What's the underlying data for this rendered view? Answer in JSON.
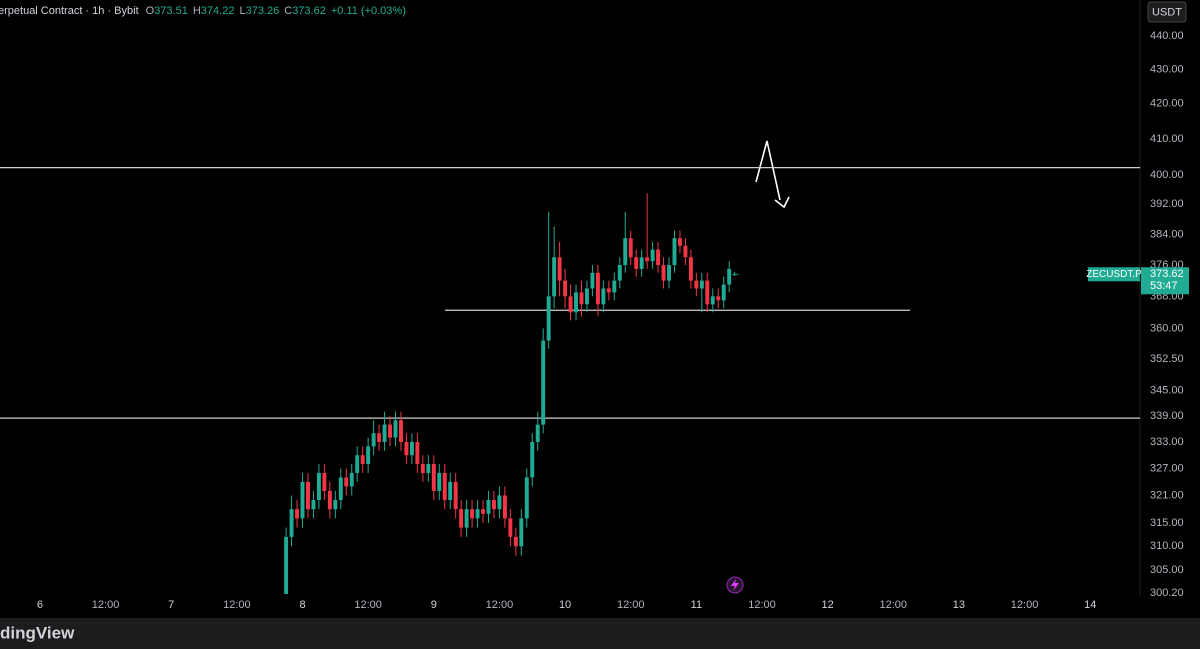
{
  "chart_data": {
    "type": "candlestick",
    "title": "erpetual Contract · 1h · Bybit",
    "ohlc_labels": [
      "O",
      "H",
      "L",
      "C"
    ],
    "change": "+0.11 (+0.03%)",
    "currency_button": "USDT",
    "symbol_label": "ZECUSDT.P",
    "countdown": "53:47",
    "brand": "dingView",
    "log_scale": true,
    "grid": false,
    "up_color": "#22ab94",
    "down_color": "#f23645",
    "xlim": [
      -7.3,
      201.1
    ],
    "ylim": [
      299.6,
      451
    ],
    "xticks": [
      {
        "value": 0,
        "label": "6"
      },
      {
        "value": 12,
        "label": "12:00"
      },
      {
        "value": 24,
        "label": "7"
      },
      {
        "value": 36,
        "label": "12:00"
      },
      {
        "value": 48,
        "label": "8"
      },
      {
        "value": 60,
        "label": "12:00"
      },
      {
        "value": 72,
        "label": "9"
      },
      {
        "value": 84,
        "label": "12:00"
      },
      {
        "value": 96,
        "label": "10"
      },
      {
        "value": 108,
        "label": "12:00"
      },
      {
        "value": 120,
        "label": "11"
      },
      {
        "value": 132,
        "label": "12:00"
      },
      {
        "value": 144,
        "label": "12"
      },
      {
        "value": 156,
        "label": "12:00"
      },
      {
        "value": 168,
        "label": "13"
      },
      {
        "value": 180,
        "label": "12:00"
      },
      {
        "value": 192,
        "label": "14"
      }
    ],
    "yticks": [
      {
        "value": 440,
        "label": "440.00"
      },
      {
        "value": 430,
        "label": "430.00"
      },
      {
        "value": 420,
        "label": "420.00"
      },
      {
        "value": 410,
        "label": "410.00"
      },
      {
        "value": 400,
        "label": "400.00"
      },
      {
        "value": 392,
        "label": "392.00"
      },
      {
        "value": 384,
        "label": "384.00"
      },
      {
        "value": 376,
        "label": "376.00"
      },
      {
        "value": 368,
        "label": "368.00"
      },
      {
        "value": 360,
        "label": "360.00"
      },
      {
        "value": 352.5,
        "label": "352.50"
      },
      {
        "value": 345,
        "label": "345.00"
      },
      {
        "value": 339,
        "label": "339.00"
      },
      {
        "value": 333,
        "label": "333.00"
      },
      {
        "value": 327,
        "label": "327.00"
      },
      {
        "value": 321,
        "label": "321.00"
      },
      {
        "value": 315,
        "label": "315.00"
      },
      {
        "value": 310,
        "label": "310.00"
      },
      {
        "value": 305,
        "label": "305.00"
      },
      {
        "value": 300.2,
        "label": "300.20"
      }
    ],
    "levels": [
      402,
      364.5,
      338.5
    ],
    "x": [
      45,
      46,
      47,
      48,
      49,
      50,
      51,
      52,
      53,
      54,
      55,
      56,
      57,
      58,
      59,
      60,
      61,
      62,
      63,
      64,
      65,
      66,
      67,
      68,
      69,
      70,
      71,
      72,
      73,
      74,
      75,
      76,
      77,
      78,
      79,
      80,
      81,
      82,
      83,
      84,
      85,
      86,
      87,
      88,
      89,
      90,
      91,
      92,
      93,
      94,
      95,
      96,
      97,
      98,
      99,
      100,
      101,
      102,
      103,
      104,
      105,
      106,
      107,
      108,
      109,
      110,
      111,
      112,
      113,
      114,
      115,
      116,
      117,
      118,
      119,
      120,
      121,
      122,
      123,
      124,
      125,
      126,
      127
    ],
    "open": [
      300,
      312,
      318,
      316,
      324,
      318,
      320,
      326,
      322,
      318,
      320,
      325,
      323,
      326,
      330,
      328,
      332,
      335,
      333,
      337,
      334,
      338,
      333,
      330,
      333,
      328,
      326,
      328,
      322,
      326,
      320,
      324,
      318,
      314,
      318,
      316,
      318,
      317,
      320,
      318,
      321,
      316,
      312,
      310,
      316,
      325,
      333,
      337,
      357,
      368,
      378,
      372,
      368,
      364,
      369,
      366,
      370,
      374,
      366,
      370,
      369,
      372,
      376,
      383,
      378,
      375,
      378,
      377,
      380,
      376,
      372,
      376,
      383,
      381,
      378,
      372,
      370,
      372,
      366,
      368,
      367,
      371,
      373.51
    ],
    "high": [
      314,
      321,
      320,
      326,
      326,
      322,
      328,
      328,
      324,
      322,
      327,
      327,
      328,
      332,
      332,
      334,
      338,
      337,
      340,
      339,
      340,
      340,
      335,
      335,
      335,
      330,
      330,
      330,
      328,
      328,
      326,
      326,
      320,
      320,
      320,
      320,
      320,
      322,
      322,
      323,
      323,
      318,
      314,
      318,
      327,
      335,
      340,
      360,
      390,
      386,
      382,
      375,
      371,
      371,
      372,
      372,
      376,
      376,
      372,
      372,
      374,
      378,
      390,
      385,
      380,
      380,
      395,
      382,
      382,
      378,
      378,
      385,
      385,
      383,
      380,
      374,
      374,
      374,
      370,
      370,
      373,
      377,
      374.22
    ],
    "low": [
      300,
      310,
      314,
      314,
      316,
      316,
      318,
      320,
      316,
      316,
      318,
      321,
      321,
      324,
      326,
      326,
      330,
      331,
      331,
      332,
      332,
      331,
      328,
      328,
      326,
      324,
      324,
      320,
      320,
      318,
      318,
      316,
      312,
      312,
      314,
      314,
      315,
      315,
      316,
      316,
      314,
      310,
      308,
      308,
      314,
      323,
      331,
      335,
      355,
      365,
      368,
      365,
      362,
      362,
      363,
      364,
      368,
      363,
      364,
      367,
      367,
      370,
      374,
      376,
      373,
      373,
      375,
      375,
      374,
      370,
      370,
      374,
      379,
      376,
      370,
      368,
      364,
      364,
      364,
      365,
      365,
      369,
      373.26
    ],
    "close": [
      312,
      318,
      316,
      324,
      318,
      320,
      326,
      322,
      318,
      320,
      325,
      323,
      326,
      330,
      328,
      332,
      335,
      333,
      337,
      334,
      338,
      333,
      330,
      333,
      328,
      326,
      328,
      322,
      326,
      320,
      324,
      318,
      314,
      318,
      316,
      318,
      317,
      320,
      318,
      321,
      316,
      312,
      310,
      316,
      325,
      333,
      337,
      357,
      368,
      378,
      372,
      368,
      364,
      369,
      366,
      370,
      374,
      366,
      370,
      369,
      372,
      376,
      383,
      378,
      375,
      378,
      377,
      380,
      376,
      372,
      376,
      383,
      381,
      378,
      372,
      370,
      372,
      366,
      368,
      367,
      371,
      375,
      373.62
    ]
  }
}
